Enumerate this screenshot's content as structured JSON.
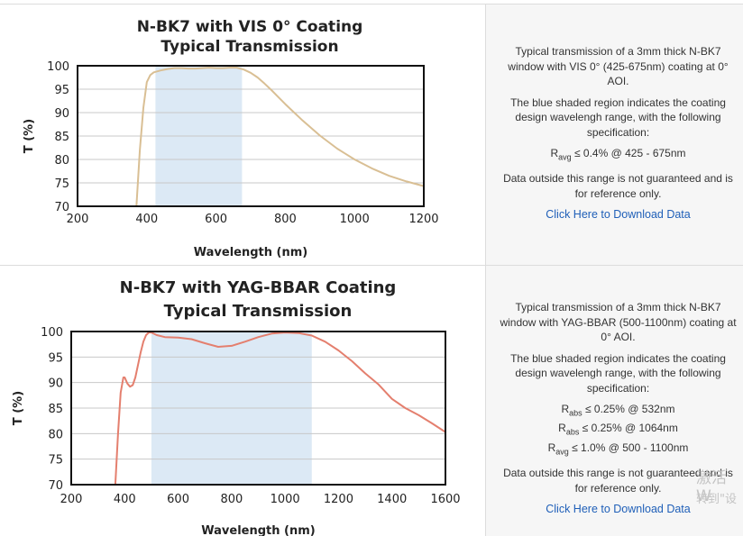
{
  "chart_data": [
    {
      "type": "line",
      "title": "N-BK7 with VIS 0° Coating",
      "subtitle": "Typical Transmission",
      "xlabel": "Wavelength (nm)",
      "ylabel": "T (%)",
      "xlim": [
        200,
        1200
      ],
      "ylim": [
        70,
        100
      ],
      "xticks": [
        "200",
        "400",
        "600",
        "800",
        "1000",
        "1200"
      ],
      "yticks": [
        "70",
        "75",
        "80",
        "85",
        "90",
        "95",
        "100"
      ],
      "shaded_range": [
        425,
        675
      ],
      "shade_color": "#dce9f5",
      "line_color": "#d9bf94",
      "grid": true,
      "series": [
        {
          "x": [
            370,
            380,
            390,
            400,
            410,
            420,
            440,
            460,
            480,
            500,
            520,
            540,
            560,
            580,
            600,
            620,
            640,
            660,
            680,
            700,
            720,
            740,
            760,
            780,
            800,
            850,
            900,
            950,
            1000,
            1050,
            1100,
            1150,
            1200
          ],
          "y": [
            70,
            82,
            91,
            96.5,
            98,
            98.6,
            99,
            99.3,
            99.5,
            99.5,
            99.4,
            99.4,
            99.5,
            99.6,
            99.5,
            99.5,
            99.6,
            99.6,
            99.2,
            98.5,
            97.5,
            96.2,
            94.8,
            93.3,
            91.8,
            88.3,
            85.1,
            82.3,
            80,
            78.1,
            76.5,
            75.3,
            74.3
          ]
        }
      ]
    },
    {
      "type": "line",
      "title": "N-BK7 with YAG-BBAR Coating",
      "subtitle": "Typical Transmission",
      "xlabel": "Wavelength (nm)",
      "ylabel": "T (%)",
      "xlim": [
        200,
        1600
      ],
      "ylim": [
        70,
        100
      ],
      "xticks": [
        "200",
        "400",
        "600",
        "800",
        "1000",
        "1200",
        "1400",
        "1600"
      ],
      "yticks": [
        "70",
        "75",
        "80",
        "85",
        "90",
        "95",
        "100"
      ],
      "shaded_range": [
        500,
        1100
      ],
      "shade_color": "#dce9f5",
      "line_color": "#e47f6e",
      "grid": true,
      "series": [
        {
          "x": [
            365,
            375,
            385,
            395,
            400,
            410,
            420,
            430,
            440,
            450,
            460,
            470,
            480,
            490,
            500,
            520,
            550,
            600,
            650,
            700,
            750,
            800,
            850,
            900,
            950,
            1000,
            1050,
            1100,
            1150,
            1200,
            1250,
            1300,
            1350,
            1400,
            1450,
            1500,
            1550,
            1600
          ],
          "y": [
            70,
            80,
            88,
            91,
            91,
            89.8,
            89.2,
            89.5,
            91,
            93.5,
            96,
            98,
            99.3,
            99.8,
            99.8,
            99.3,
            98.9,
            98.8,
            98.5,
            97.7,
            97,
            97.2,
            98,
            98.9,
            99.6,
            99.8,
            99.7,
            99.2,
            98,
            96.3,
            94.2,
            91.8,
            89.6,
            86.8,
            85,
            83.6,
            82,
            80.3
          ]
        }
      ]
    }
  ],
  "descriptions": [
    {
      "p1": "Typical transmission of a 3mm thick N-BK7 window with VIS 0° (425-675nm) coating at 0° AOI.",
      "p2": "The blue shaded region indicates the coating design wavelengh range, with the following specification:",
      "specs": [
        {
          "main": "R",
          "sub": "avg",
          "rest": " ≤ 0.4% @ 425 - 675nm"
        }
      ],
      "p3": "Data outside this range is not guaranteed and is for reference only.",
      "link": "Click Here to Download Data"
    },
    {
      "p1": "Typical transmission of a 3mm thick N-BK7 window with YAG-BBAR (500-1100nm) coating at 0° AOI.",
      "p2": "The blue shaded region indicates the coating design wavelengh range, with the following specification:",
      "specs": [
        {
          "main": "R",
          "sub": "abs",
          "rest": " ≤ 0.25% @ 532nm"
        },
        {
          "main": "R",
          "sub": "abs",
          "rest": " ≤ 0.25% @ 1064nm"
        },
        {
          "main": "R",
          "sub": "avg",
          "rest": " ≤ 1.0% @ 500 - 1100nm"
        }
      ],
      "p3": "Data outside this range is not guaranteed and is for reference only.",
      "link": "Click Here to Download Data"
    }
  ],
  "watermark": {
    "line1": "激活 W",
    "line2": "转到\"设"
  }
}
